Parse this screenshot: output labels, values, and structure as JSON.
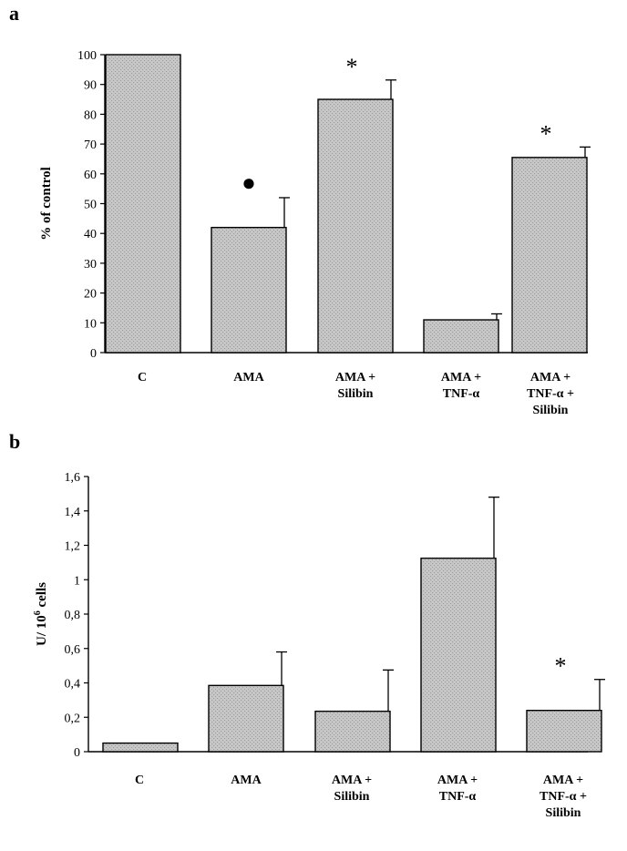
{
  "colors": {
    "bar_fill": "#c6c6c6",
    "axis": "#000000",
    "background": "#ffffff"
  },
  "chart_data": [
    {
      "panel_label": "a",
      "type": "bar",
      "ylabel": "% of control",
      "ylim": [
        0,
        100
      ],
      "yticks": [
        "0",
        "10",
        "20",
        "30",
        "40",
        "50",
        "60",
        "70",
        "80",
        "90",
        "100"
      ],
      "categories": [
        [
          "C"
        ],
        [
          "AMA"
        ],
        [
          "AMA +",
          "Silibin"
        ],
        [
          "AMA +",
          "TNF-α"
        ],
        [
          "AMA +",
          "TNF-α +",
          "Silibin"
        ]
      ],
      "values": [
        100,
        42,
        85,
        11,
        65.5
      ],
      "errors": [
        0,
        10,
        6.5,
        2,
        3.5
      ],
      "annotations": [
        "",
        "●",
        "*",
        "",
        "*"
      ]
    },
    {
      "panel_label": "b",
      "type": "bar",
      "ylabel_main": "U/ 10",
      "ylabel_sup": "6",
      "ylabel_end": " cells",
      "ylim": [
        0,
        1.6
      ],
      "yticks": [
        "0",
        "0,2",
        "0,4",
        "0,6",
        "0,8",
        "1",
        "1,2",
        "1,4",
        "1,6"
      ],
      "categories": [
        [
          "C"
        ],
        [
          "AMA"
        ],
        [
          "AMA +",
          "Silibin"
        ],
        [
          "AMA +",
          "TNF-α"
        ],
        [
          "AMA +",
          "TNF-α +",
          "Silibin"
        ]
      ],
      "values": [
        0.05,
        0.385,
        0.235,
        1.125,
        0.24
      ],
      "errors": [
        0,
        0.195,
        0.24,
        0.355,
        0.18
      ],
      "annotations": [
        "",
        "",
        "",
        "",
        "*"
      ]
    }
  ]
}
